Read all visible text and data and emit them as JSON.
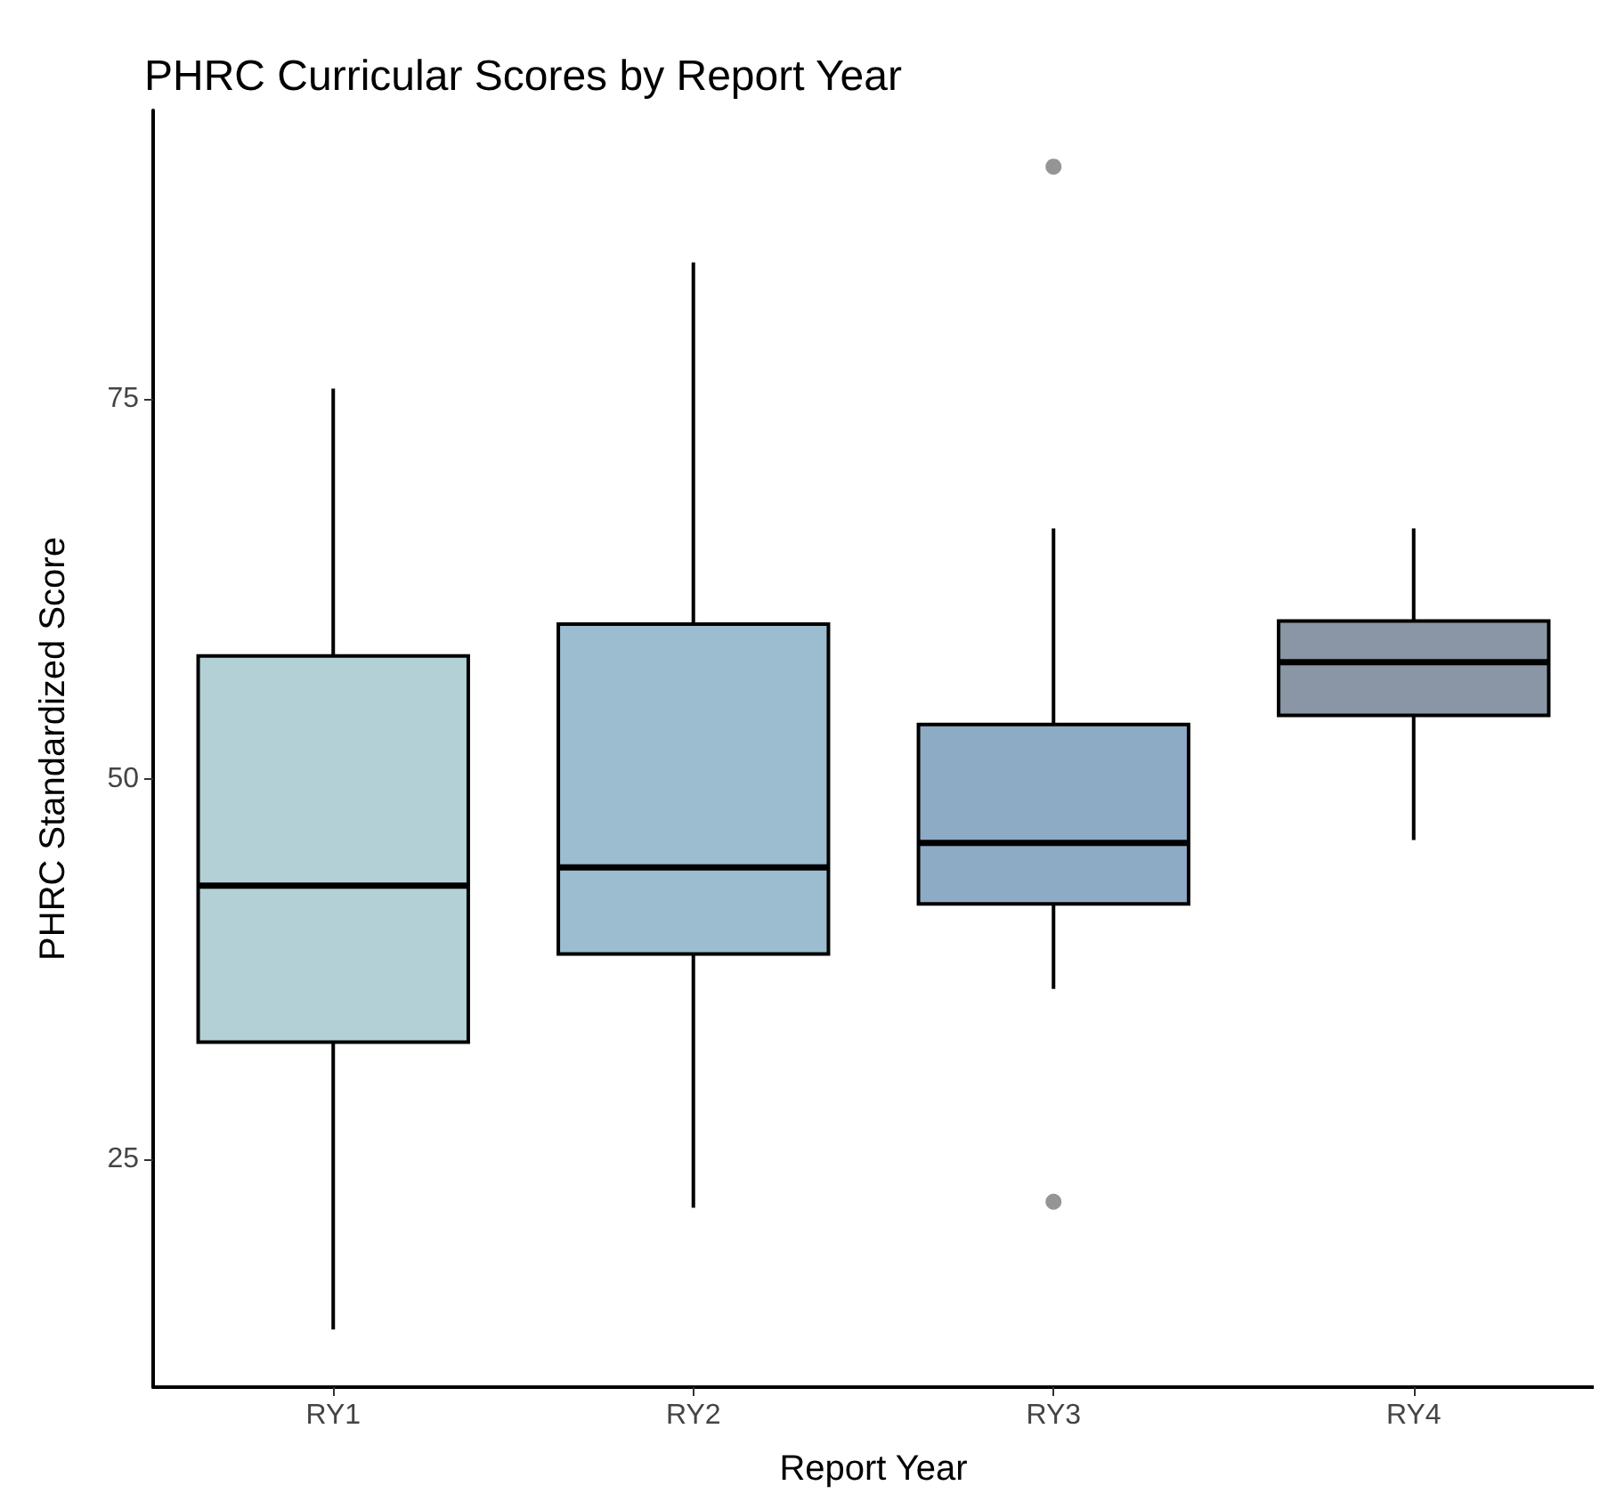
{
  "chart_data": {
    "type": "box",
    "title": "PHRC Curricular Scores by Report Year",
    "xlabel": "Report Year",
    "ylabel": "PHRC Standardized Score",
    "categories": [
      "RY1",
      "RY2",
      "RY3",
      "RY4"
    ],
    "colors": [
      "#b3d0d6",
      "#9bbdcf",
      "#8eabc5",
      "#8a96a6"
    ],
    "boxes": [
      {
        "low": 13.8,
        "q1": 32.7,
        "median": 43.0,
        "q3": 58.1,
        "high": 75.7
      },
      {
        "low": 21.8,
        "q1": 38.5,
        "median": 44.2,
        "q3": 60.2,
        "high": 84.0
      },
      {
        "low": 36.2,
        "q1": 41.8,
        "median": 45.8,
        "q3": 53.6,
        "high": 66.5,
        "outliers": [
          90.3,
          22.2
        ]
      },
      {
        "low": 46.0,
        "q1": 54.2,
        "median": 57.7,
        "q3": 60.4,
        "high": 66.5
      }
    ],
    "ylim": [
      10,
      94
    ],
    "yticks": [
      25,
      50,
      75
    ],
    "grid": false
  }
}
